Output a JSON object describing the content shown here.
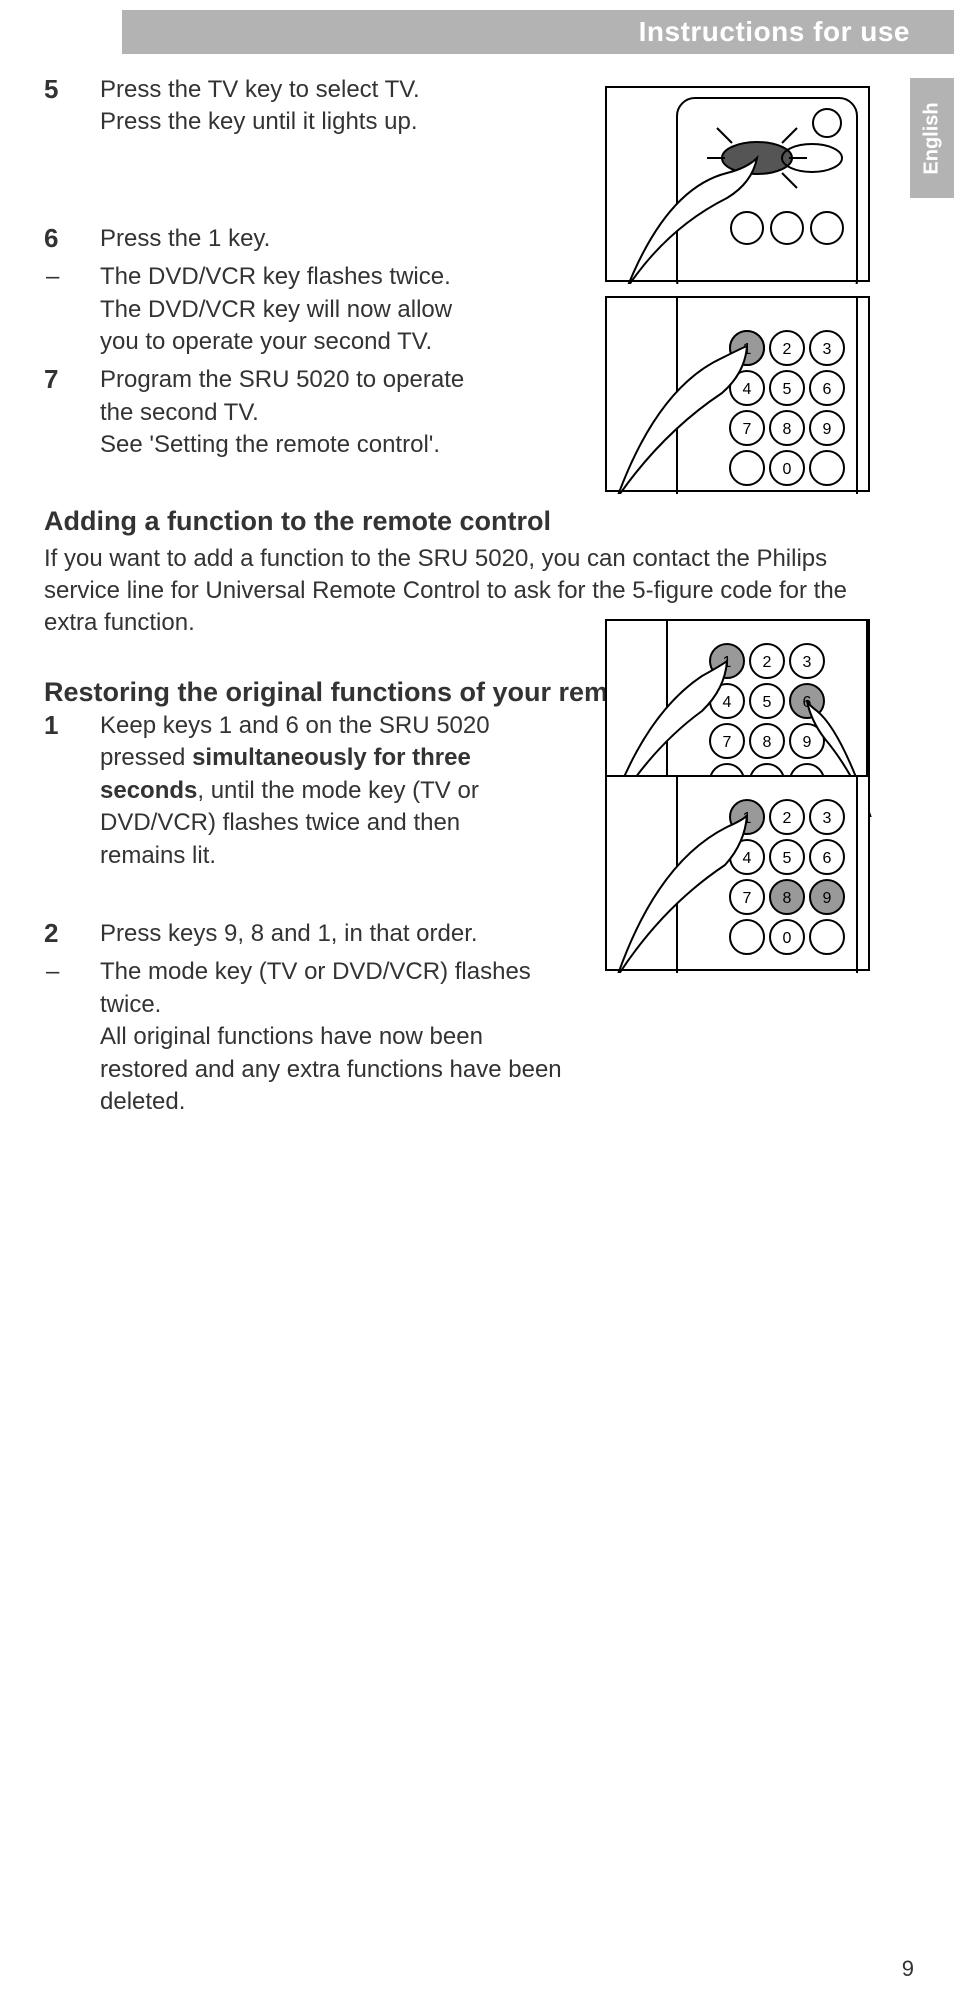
{
  "header": {
    "title": "Instructions for use"
  },
  "language_tab": {
    "label": "English"
  },
  "steps_top": [
    {
      "num": "5",
      "text": "Press the TV key to select TV.\nPress the key until it lights up.",
      "class": "block-5"
    },
    {
      "num": "6",
      "text": "Press the 1 key.",
      "class": "block-6"
    },
    {
      "num": "–",
      "dash": true,
      "text": "The DVD/VCR key flashes twice.\nThe DVD/VCR key will now allow you to operate your second TV.",
      "class": "block-6"
    },
    {
      "num": "7",
      "text": "Program the SRU 5020 to operate the second TV.\nSee 'Setting the remote control'.",
      "class": "block-7"
    }
  ],
  "section_add": {
    "heading": "Adding a function to the remote control",
    "para": "If you want to add a function to the SRU 5020, you can contact the Philips service line for Universal Remote Control to ask for the 5-figure code for the extra function."
  },
  "section_restore": {
    "heading": "Restoring the original functions of your remote control",
    "steps": [
      {
        "num": "1",
        "pre": "Keep keys 1 and 6 on the SRU 5020 pressed ",
        "bold": "simultaneously for three seconds",
        "post": ", until the mode key (TV or DVD/VCR) flashes twice and then remains lit.",
        "class": "block-r1"
      },
      {
        "num": "2",
        "text": "Press keys 9, 8 and 1, in that order.",
        "class": "block-r2"
      },
      {
        "num": "–",
        "dash": true,
        "text": "The mode key (TV or DVD/VCR) flashes twice.\nAll original functions have now been restored and any extra functions have been deleted.",
        "class": "block-r2"
      }
    ]
  },
  "page_number": "9",
  "colors": {
    "header_bg": "#b3b3b3",
    "header_text": "#ffffff",
    "body_text": "#333333",
    "figure_border": "#000000",
    "page_bg": "#ffffff"
  },
  "fonts": {
    "body_size_pt": 18,
    "heading_size_pt": 20
  }
}
